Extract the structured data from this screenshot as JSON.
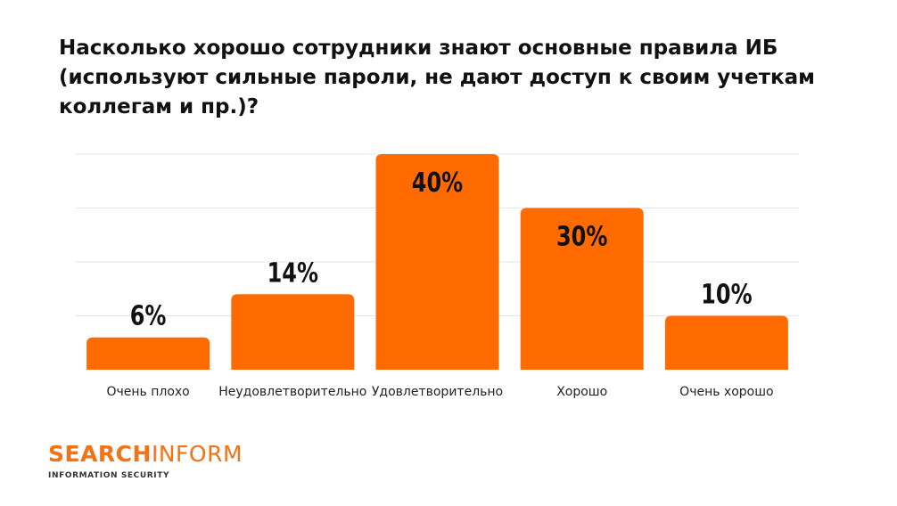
{
  "title": "Насколько хорошо сотрудники знают основные правила ИБ (используют сильные пароли, не дают доступ к своим учеткам коллегам и пр.)?",
  "logo": {
    "brand_part1": "SEARCH",
    "brand_part2": "INFORM",
    "tagline": "INFORMATION SECURITY"
  },
  "colors": {
    "bar": "#FF6B00",
    "grid": "#E6E6E6",
    "brand": "#F47216"
  },
  "chart_data": {
    "type": "bar",
    "title": "Насколько хорошо сотрудники знают основные правила ИБ (используют сильные пароли, не дают доступ к своим учеткам коллегам и пр.)?",
    "categories": [
      "Очень плохо",
      "Неудовлетворительно",
      "Удовлетворительно",
      "Хорошо",
      "Очень хорошо"
    ],
    "values": [
      6,
      14,
      40,
      30,
      10
    ],
    "data_labels": [
      "6%",
      "14%",
      "40%",
      "30%",
      "10%"
    ],
    "xlabel": "",
    "ylabel": "",
    "ylim": [
      0,
      40
    ],
    "grid": true,
    "legend": "none"
  }
}
